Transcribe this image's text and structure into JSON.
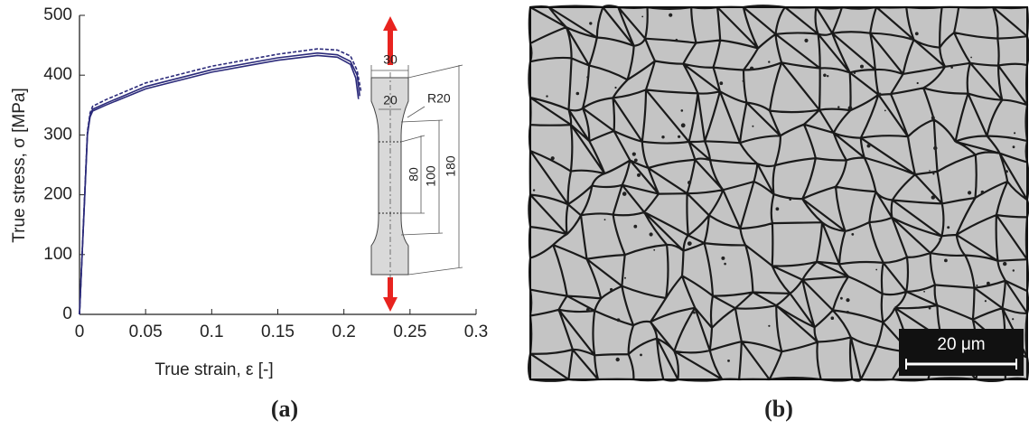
{
  "chart_data": {
    "type": "line",
    "x_label": "True strain, ε [-]",
    "y_label": "True stress, σ [MPa]",
    "xlim": [
      0,
      0.3
    ],
    "xticks": [
      0,
      0.05,
      0.1,
      0.15,
      0.2,
      0.25,
      0.3
    ],
    "ylim": [
      0,
      500
    ],
    "yticks": [
      0,
      100,
      200,
      300,
      400,
      500
    ],
    "grid": false,
    "series": [
      {
        "color": "#2b2a7a",
        "dashed": false,
        "x": [
          0,
          0.003,
          0.006,
          0.008,
          0.01,
          0.02,
          0.05,
          0.1,
          0.15,
          0.18,
          0.195,
          0.205,
          0.209,
          0.211
        ],
        "values": [
          0,
          150,
          300,
          330,
          340,
          350,
          377,
          405,
          425,
          433,
          430,
          418,
          395,
          360
        ]
      },
      {
        "color": "#2b2a7a",
        "dashed": false,
        "x": [
          0,
          0.003,
          0.006,
          0.008,
          0.01,
          0.02,
          0.05,
          0.1,
          0.15,
          0.18,
          0.195,
          0.205,
          0.21,
          0.212
        ],
        "values": [
          0,
          152,
          303,
          333,
          343,
          353,
          381,
          409,
          429,
          437,
          434,
          423,
          400,
          365
        ]
      },
      {
        "color": "#2b2a7a",
        "dashed": true,
        "x": [
          0,
          0.003,
          0.006,
          0.008,
          0.01,
          0.02,
          0.05,
          0.1,
          0.15,
          0.18,
          0.195,
          0.205,
          0.21,
          0.213
        ],
        "values": [
          0,
          154,
          306,
          337,
          348,
          359,
          387,
          415,
          435,
          444,
          442,
          432,
          408,
          372
        ]
      }
    ],
    "specimen_labels": [
      "30",
      "20",
      "R20",
      "80",
      "100",
      "180"
    ],
    "arrow_color": "#e8231f",
    "panel_labels": [
      "(a)",
      "(b)"
    ],
    "micrograph_scale": "20 μm"
  }
}
